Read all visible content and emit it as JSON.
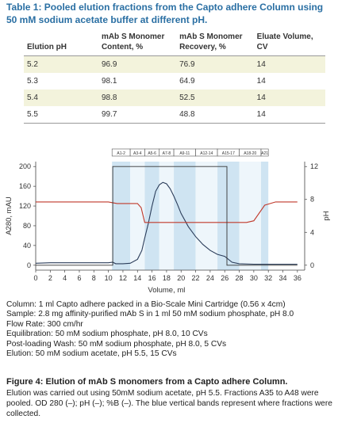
{
  "table": {
    "title": "Table 1: Pooled elution fractions from the Capto adhere Column using 50 mM sodium acetate buffer at different pH.",
    "headers": [
      "Elution pH",
      "mAb S Monomer Content, %",
      "mAb S Monomer Recovery, %",
      "Eluate Volume, CV"
    ],
    "rows": [
      [
        "5.2",
        "96.9",
        "76.9",
        "14"
      ],
      [
        "5.3",
        "98.1",
        "64.9",
        "14"
      ],
      [
        "5.4",
        "98.8",
        "52.5",
        "14"
      ],
      [
        "5.5",
        "99.7",
        "48.8",
        "14"
      ]
    ]
  },
  "chart_data": {
    "type": "line",
    "xlabel": "Volume, ml",
    "ylabel_left": "A280, mAU",
    "ylabel_right": "pH",
    "xlim": [
      0,
      37
    ],
    "ylim_left": [
      -10,
      210
    ],
    "ylim_right": [
      -0.6,
      12.6
    ],
    "x_ticks": [
      0,
      2,
      4,
      6,
      8,
      10,
      12,
      14,
      16,
      18,
      20,
      22,
      24,
      26,
      28,
      30,
      32,
      34,
      36
    ],
    "y_ticks_left": [
      0,
      40,
      80,
      120,
      160,
      200
    ],
    "y_ticks_right": [
      0,
      4,
      8,
      12
    ],
    "fractions": [
      "A1-2",
      "A3-4",
      "A5-6",
      "A7-8",
      "A9-11",
      "A12-14",
      "A15-17",
      "A18-20",
      "A21"
    ],
    "fraction_bounds": [
      10.5,
      13.0,
      15.0,
      17.0,
      19.0,
      22.0,
      25.0,
      28.0,
      31.0,
      32.0
    ],
    "band_colors": [
      "#cfe4f2",
      "#eef6fb"
    ],
    "series": [
      {
        "color": "#2b3d5a",
        "x": [
          0,
          2,
          4,
          6,
          8,
          10,
          10.6,
          11,
          12,
          13,
          14,
          14.6,
          15,
          15.5,
          16,
          16.5,
          17,
          17.5,
          18,
          18.5,
          19,
          19.5,
          20,
          21,
          22,
          23,
          24,
          25,
          26,
          27,
          28,
          30,
          32,
          34,
          36
        ],
        "y": [
          4,
          5,
          5,
          5,
          5,
          5,
          6,
          3,
          3,
          4,
          12,
          30,
          55,
          85,
          120,
          150,
          163,
          168,
          165,
          155,
          140,
          123,
          105,
          78,
          58,
          42,
          30,
          22,
          18,
          6,
          3,
          2,
          2,
          2,
          2
        ]
      },
      {
        "color": "#c0392b",
        "x": [
          0,
          2,
          4,
          6,
          8,
          10,
          10.6,
          11.2,
          12,
          13,
          14,
          14.5,
          15,
          20,
          26,
          27,
          28,
          29,
          30,
          31.5,
          33,
          36
        ],
        "y": [
          7.7,
          7.7,
          7.7,
          7.7,
          7.7,
          7.7,
          7.6,
          7.5,
          7.5,
          7.5,
          7.5,
          7.0,
          5.2,
          5.2,
          5.2,
          5.2,
          5.2,
          5.2,
          5.4,
          7.3,
          7.7,
          7.7
        ]
      },
      {
        "color": "#333333",
        "x": [
          0,
          10.6,
          10.6,
          26.3,
          26.3,
          36
        ],
        "y": [
          0,
          0,
          12,
          12,
          0,
          0
        ]
      }
    ]
  },
  "captions": [
    "Column: 1 ml Capto adhere packed in a Bio-Scale Mini Cartridge (0.56 x 4cm)",
    "Sample: 2.8 mg affinity-purified mAb S in 1 ml 50 mM sodium phosphate, pH 8.0",
    "Flow Rate: 300 cm/hr",
    "Equilibration: 50 mM sodium phosphate, pH 8.0, 10 CVs",
    "Post-loading Wash: 50 mM sodium phosphate, pH 8.0, 5 CVs",
    "Elution: 50 mM sodium acetate, pH 5.5, 15 CVs"
  ],
  "figure": {
    "title": "Figure 4: Elution of mAb S monomers from a Capto adhere Column.",
    "caption": "Elution was carried out using 50mM sodium acetate, pH 5.5. Fractions A35 to A48 were pooled. OD 280 (–); pH (–); %B (–). The blue vertical bands represent where fractions were collected."
  }
}
